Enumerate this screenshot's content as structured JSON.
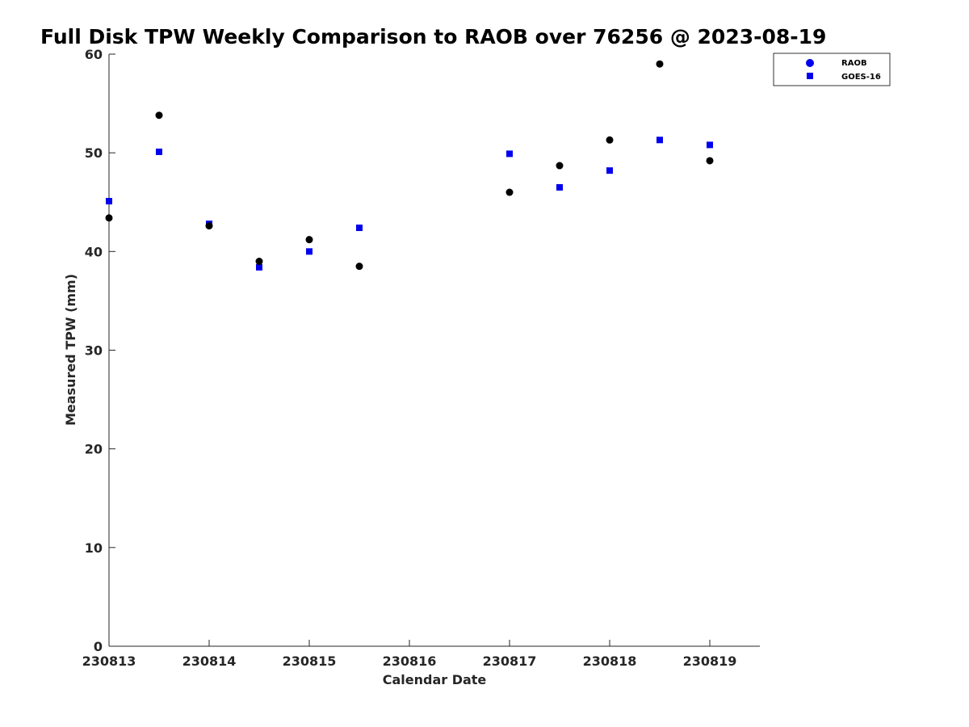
{
  "chart_data": {
    "type": "scatter",
    "title": "Full Disk TPW Weekly Comparison to RAOB over 76256 @ 2023-08-19",
    "xlabel": "Calendar Date",
    "ylabel": "Measured TPW (mm)",
    "xlim": [
      230813,
      230819.5
    ],
    "ylim": [
      0,
      60
    ],
    "x_ticks": [
      230813,
      230814,
      230815,
      230816,
      230817,
      230818,
      230819
    ],
    "x_tick_labels": [
      "230813",
      "230814",
      "230815",
      "230816",
      "230817",
      "230818",
      "230819"
    ],
    "y_ticks": [
      0,
      10,
      20,
      30,
      40,
      50,
      60
    ],
    "y_tick_labels": [
      "0",
      "10",
      "20",
      "30",
      "40",
      "50",
      "60"
    ],
    "legend_position": "top-right",
    "series": [
      {
        "name": "RAOB",
        "marker": "circle",
        "color": "#000000",
        "legend_color": "#0000ee",
        "x": [
          230813,
          230813.5,
          230814,
          230814.5,
          230815,
          230815.5,
          230817,
          230817.5,
          230818,
          230818.5,
          230819
        ],
        "y": [
          43.4,
          53.8,
          42.6,
          39.0,
          41.2,
          38.5,
          46.0,
          48.7,
          51.3,
          59.0,
          49.2
        ]
      },
      {
        "name": "GOES-16",
        "marker": "square",
        "color": "#0000ee",
        "legend_color": "#0000ee",
        "x": [
          230813,
          230813.5,
          230814,
          230814.5,
          230815,
          230815.5,
          230817,
          230817.5,
          230818,
          230818.5,
          230819
        ],
        "y": [
          45.1,
          50.1,
          42.8,
          38.4,
          40.0,
          42.4,
          49.9,
          46.5,
          48.2,
          51.3,
          50.8
        ]
      }
    ]
  }
}
